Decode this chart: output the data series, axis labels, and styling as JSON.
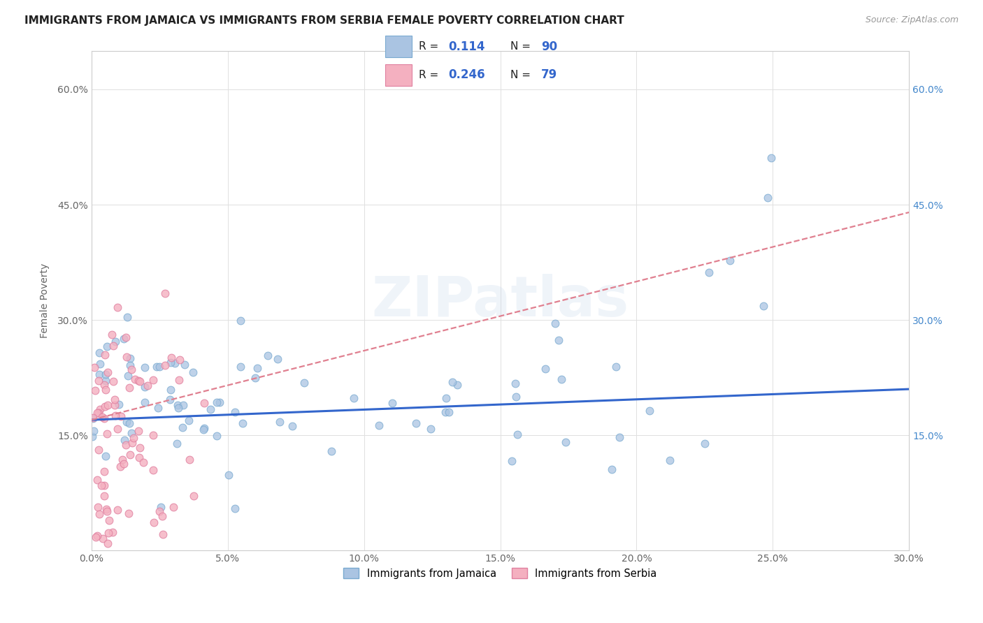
{
  "title": "IMMIGRANTS FROM JAMAICA VS IMMIGRANTS FROM SERBIA FEMALE POVERTY CORRELATION CHART",
  "source": "Source: ZipAtlas.com",
  "xlabel": "",
  "ylabel": "Female Poverty",
  "xlim": [
    0.0,
    0.3
  ],
  "ylim": [
    0.0,
    0.65
  ],
  "xtick_labels": [
    "0.0%",
    "5.0%",
    "10.0%",
    "15.0%",
    "20.0%",
    "25.0%",
    "30.0%"
  ],
  "xtick_vals": [
    0.0,
    0.05,
    0.1,
    0.15,
    0.2,
    0.25,
    0.3
  ],
  "ytick_labels": [
    "15.0%",
    "30.0%",
    "45.0%",
    "60.0%"
  ],
  "ytick_vals": [
    0.15,
    0.3,
    0.45,
    0.6
  ],
  "watermark": "ZIPatlas",
  "jamaica_color": "#aac4e2",
  "jamaica_edge": "#7aaad0",
  "serbia_color": "#f4b0c0",
  "serbia_edge": "#e080a0",
  "jamaica_R": 0.114,
  "jamaica_N": 90,
  "serbia_R": 0.246,
  "serbia_N": 79,
  "trend_jamaica_color": "#3366cc",
  "trend_serbia_color": "#e08090",
  "background_color": "#ffffff",
  "grid_color": "#e0e0e0",
  "title_color": "#222222",
  "legend_label_jamaica": "Immigrants from Jamaica",
  "legend_label_serbia": "Immigrants from Serbia"
}
